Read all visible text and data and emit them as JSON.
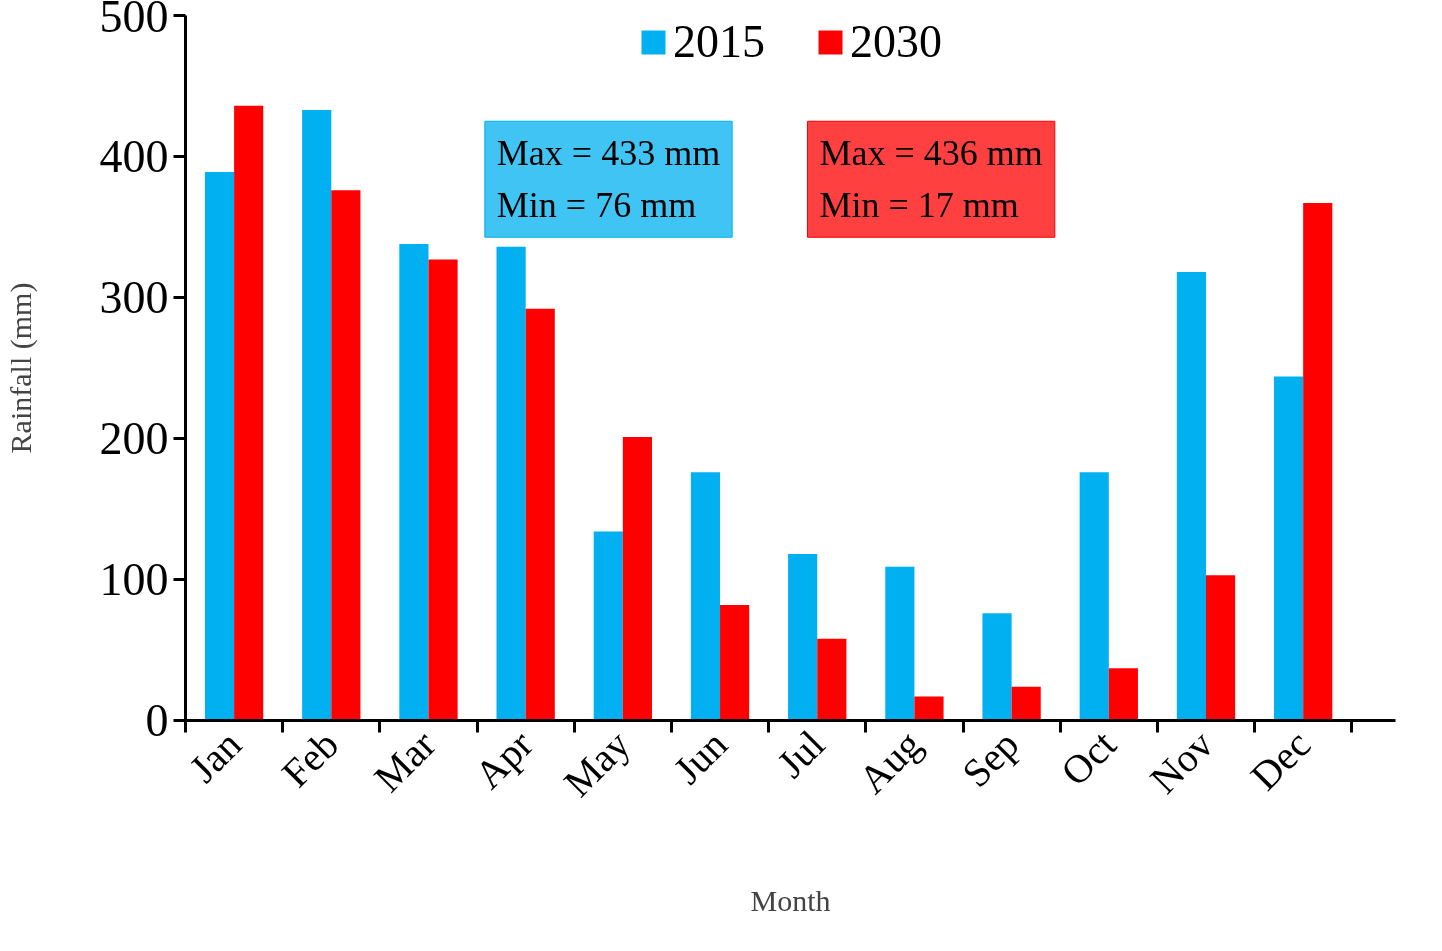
{
  "chart_data": {
    "type": "bar",
    "xlabel": "Month",
    "ylabel": "Rainfall (mm)",
    "categories": [
      "Jan",
      "Feb",
      "Mar",
      "Apr",
      "May",
      "Jun",
      "Jul",
      "Aug",
      "Sep",
      "Oct",
      "Nov",
      "Dec"
    ],
    "series": [
      {
        "name": "2015",
        "color": "#00b0f0",
        "values": [
          389,
          433,
          338,
          336,
          134,
          176,
          118,
          109,
          76,
          176,
          318,
          244
        ]
      },
      {
        "name": "2030",
        "color": "#ff0000",
        "values": [
          436,
          376,
          327,
          292,
          201,
          82,
          58,
          17,
          24,
          37,
          103,
          367
        ]
      }
    ],
    "annotations": [
      "Max = 433 mm\nMin = 76 mm",
      "Max = 436 mm\nMin = 17 mm"
    ],
    "ylim": [
      0,
      500
    ],
    "yticks": [
      0,
      100,
      200,
      300,
      400,
      500
    ],
    "grid": false,
    "legend": "top"
  }
}
